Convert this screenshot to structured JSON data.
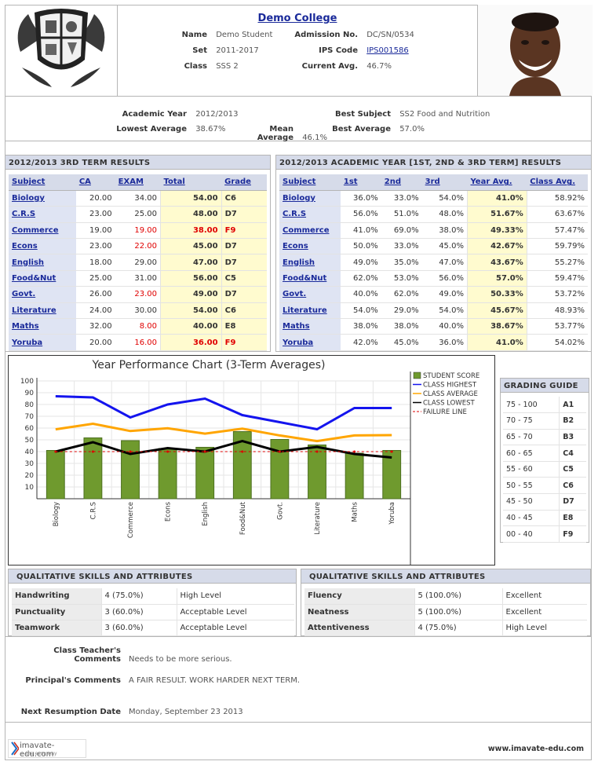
{
  "college": {
    "name": "Demo College"
  },
  "student": {
    "name_label": "Name",
    "name": "Demo Student",
    "set_label": "Set",
    "set": "2011-2017",
    "class_label": "Class",
    "class": "SSS 2",
    "admission_label": "Admission No.",
    "admission": "DC/SN/0534",
    "ips_label": "IPS Code",
    "ips": "IPS001586",
    "current_avg_label": "Current Avg.",
    "current_avg": "46.7%"
  },
  "academic": {
    "year_label": "Academic Year",
    "year": "2012/2013",
    "lowest_label": "Lowest Average",
    "lowest": "38.67%",
    "mean_label": "Mean Average",
    "mean": "46.1%",
    "best_subject_label": "Best Subject",
    "best_subject": "SS2 Food and Nutrition",
    "best_avg_label": "Best Average",
    "best_avg": "57.0%"
  },
  "term_results": {
    "title": "2012/2013 3RD TERM RESULTS",
    "headers": [
      "Subject",
      "CA",
      "EXAM",
      "Total",
      "Grade"
    ],
    "rows": [
      {
        "subject": "Biology",
        "ca": "20.00",
        "exam": "34.00",
        "total": "54.00",
        "grade": "C6",
        "fail": false
      },
      {
        "subject": "C.R.S",
        "ca": "23.00",
        "exam": "25.00",
        "total": "48.00",
        "grade": "D7",
        "fail": false
      },
      {
        "subject": "Commerce",
        "ca": "19.00",
        "exam": "19.00",
        "total": "38.00",
        "grade": "F9",
        "fail": true
      },
      {
        "subject": "Econs",
        "ca": "23.00",
        "exam": "22.00",
        "total": "45.00",
        "grade": "D7",
        "fail": false,
        "exam_red": true
      },
      {
        "subject": "English",
        "ca": "18.00",
        "exam": "29.00",
        "total": "47.00",
        "grade": "D7",
        "fail": false
      },
      {
        "subject": "Food&Nut",
        "ca": "25.00",
        "exam": "31.00",
        "total": "56.00",
        "grade": "C5",
        "fail": false
      },
      {
        "subject": "Govt.",
        "ca": "26.00",
        "exam": "23.00",
        "total": "49.00",
        "grade": "D7",
        "fail": false,
        "exam_red": true
      },
      {
        "subject": "Literature",
        "ca": "24.00",
        "exam": "30.00",
        "total": "54.00",
        "grade": "C6",
        "fail": false
      },
      {
        "subject": "Maths",
        "ca": "32.00",
        "exam": "8.00",
        "total": "40.00",
        "grade": "E8",
        "fail": false,
        "exam_red": true
      },
      {
        "subject": "Yoruba",
        "ca": "20.00",
        "exam": "16.00",
        "total": "36.00",
        "grade": "F9",
        "fail": true
      }
    ]
  },
  "year_results": {
    "title": "2012/2013 ACADEMIC YEAR [1ST, 2ND & 3RD TERM] RESULTS",
    "headers": [
      "Subject",
      "1st",
      "2nd",
      "3rd",
      "Year Avg.",
      "Class Avg."
    ],
    "rows": [
      {
        "subject": "Biology",
        "t1": "36.0%",
        "t2": "33.0%",
        "t3": "54.0%",
        "avg": "41.0%",
        "class": "58.92%"
      },
      {
        "subject": "C.R.S",
        "t1": "56.0%",
        "t2": "51.0%",
        "t3": "48.0%",
        "avg": "51.67%",
        "class": "63.67%"
      },
      {
        "subject": "Commerce",
        "t1": "41.0%",
        "t2": "69.0%",
        "t3": "38.0%",
        "avg": "49.33%",
        "class": "57.47%"
      },
      {
        "subject": "Econs",
        "t1": "50.0%",
        "t2": "33.0%",
        "t3": "45.0%",
        "avg": "42.67%",
        "class": "59.79%"
      },
      {
        "subject": "English",
        "t1": "49.0%",
        "t2": "35.0%",
        "t3": "47.0%",
        "avg": "43.67%",
        "class": "55.27%"
      },
      {
        "subject": "Food&Nut",
        "t1": "62.0%",
        "t2": "53.0%",
        "t3": "56.0%",
        "avg": "57.0%",
        "class": "59.47%"
      },
      {
        "subject": "Govt.",
        "t1": "40.0%",
        "t2": "62.0%",
        "t3": "49.0%",
        "avg": "50.33%",
        "class": "53.72%"
      },
      {
        "subject": "Literature",
        "t1": "54.0%",
        "t2": "29.0%",
        "t3": "54.0%",
        "avg": "45.67%",
        "class": "48.93%"
      },
      {
        "subject": "Maths",
        "t1": "38.0%",
        "t2": "38.0%",
        "t3": "40.0%",
        "avg": "38.67%",
        "class": "53.77%"
      },
      {
        "subject": "Yoruba",
        "t1": "42.0%",
        "t2": "45.0%",
        "t3": "36.0%",
        "avg": "41.0%",
        "class": "54.02%"
      }
    ]
  },
  "chart_data": {
    "type": "bar",
    "title": "Year Performance Chart (3-Term Averages)",
    "categories": [
      "Biology",
      "C.R.S",
      "Commerce",
      "Econs",
      "English",
      "Food&Nut",
      "Govt.",
      "Literature",
      "Maths",
      "Yoruba"
    ],
    "ylim": [
      0,
      100
    ],
    "yticks": [
      10,
      20,
      30,
      40,
      50,
      60,
      70,
      80,
      90,
      100
    ],
    "series": [
      {
        "name": "STUDENT SCORE",
        "kind": "bar",
        "color": "#6f9a2e",
        "values": [
          41.0,
          51.67,
          49.33,
          42.67,
          43.67,
          57.0,
          50.33,
          45.67,
          38.67,
          41.0
        ]
      },
      {
        "name": "CLASS HIGHEST",
        "kind": "line",
        "color": "#1414ee",
        "values": [
          87,
          86,
          69,
          80,
          85,
          71,
          65,
          59,
          77,
          77
        ]
      },
      {
        "name": "CLASS AVERAGE",
        "kind": "line",
        "color": "#ffa500",
        "values": [
          58.92,
          63.67,
          57.47,
          59.79,
          55.27,
          59.47,
          53.72,
          48.93,
          53.77,
          54.02
        ]
      },
      {
        "name": "CLASS LOWEST",
        "kind": "line",
        "color": "#000000",
        "values": [
          40,
          48,
          38,
          43,
          40,
          49,
          40,
          44,
          38,
          35
        ]
      },
      {
        "name": "FAILURE LINE",
        "kind": "dashed",
        "color": "#dd0000",
        "values": [
          40,
          40,
          40,
          40,
          40,
          40,
          40,
          40,
          40,
          40
        ]
      }
    ],
    "grid": true,
    "legend": "top-right"
  },
  "grading": {
    "title": "GRADING GUIDE",
    "rows": [
      {
        "range": "75 - 100",
        "grade": "A1"
      },
      {
        "range": "70 - 75",
        "grade": "B2"
      },
      {
        "range": "65 - 70",
        "grade": "B3"
      },
      {
        "range": "60 - 65",
        "grade": "C4"
      },
      {
        "range": "55 - 60",
        "grade": "C5"
      },
      {
        "range": "50 - 55",
        "grade": "C6"
      },
      {
        "range": "45 - 50",
        "grade": "D7"
      },
      {
        "range": "40 - 45",
        "grade": "E8"
      },
      {
        "range": "00 - 40",
        "grade": "F9"
      }
    ]
  },
  "skills_left": {
    "title": "QUALITATIVE SKILLS AND ATTRIBUTES",
    "rows": [
      {
        "skill": "Handwriting",
        "score": "4 (75.0%)",
        "level": "High Level"
      },
      {
        "skill": "Punctuality",
        "score": "3 (60.0%)",
        "level": "Acceptable Level"
      },
      {
        "skill": "Teamwork",
        "score": "3 (60.0%)",
        "level": "Acceptable Level"
      }
    ]
  },
  "skills_right": {
    "title": "QUALITATIVE SKILLS AND ATTRIBUTES",
    "rows": [
      {
        "skill": "Fluency",
        "score": "5 (100.0%)",
        "level": "Excellent"
      },
      {
        "skill": "Neatness",
        "score": "5 (100.0%)",
        "level": "Excellent"
      },
      {
        "skill": "Attentiveness",
        "score": "4 (75.0%)",
        "level": "High Level"
      }
    ]
  },
  "comments": {
    "teacher_label": "Class Teacher's Comments",
    "teacher": "Needs to be more serious.",
    "principal_label": "Principal's Comments",
    "principal": "A FAIR RESULT. WORK HARDER NEXT TERM.",
    "resumption_label": "Next Resumption Date",
    "resumption": "Monday, September 23 2013"
  },
  "footer": {
    "logo_text": "imavate-edu.com",
    "logo_tagline": "...the easy way",
    "url": "www.imavate-edu.com"
  }
}
